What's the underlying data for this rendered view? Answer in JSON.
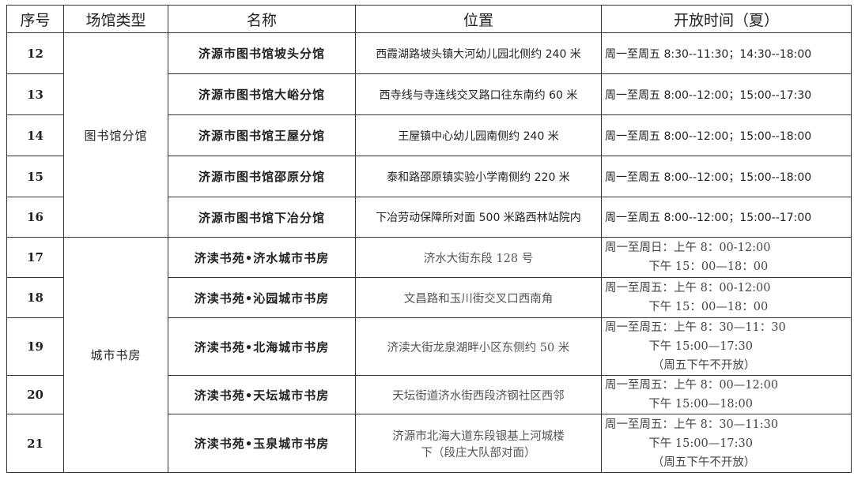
{
  "headers": [
    "序号",
    "场馆类型",
    "名称",
    "位置",
    "开放时间（夏）"
  ],
  "groups": {
    "library": "图书馆分馆",
    "bookhouse": "城市书房"
  },
  "rows": [
    {
      "no": "12",
      "name": "济源市图书馆坡头分馆",
      "loc": "西霞湖路坡头镇大河幼儿园北侧约 240 米",
      "time": "周一至周五 8:30--11:30；14:30--18:00"
    },
    {
      "no": "13",
      "name": "济源市图书馆大峪分馆",
      "loc": "西寺线与寺连线交叉路口往东南约 60 米",
      "time": "周一至周五 8:00--12:00；15:00--17:30"
    },
    {
      "no": "14",
      "name": "济源市图书馆王屋分馆",
      "loc": "王屋镇中心幼儿园南侧约 240 米",
      "time": "周一至周五 8:00--12:00；15:00--18:00"
    },
    {
      "no": "15",
      "name": "济源市图书馆邵原分馆",
      "loc": "泰和路邵原镇实验小学南侧约 220 米",
      "time": "周一至周五 8:00--12:00；15:00--18:00"
    },
    {
      "no": "16",
      "name": "济源市图书馆下冶分馆",
      "loc": "下冶劳动保障所对面 500 米路西林站院内",
      "time": "周一至周五 8:00--12:00；15:00--17:00"
    },
    {
      "no": "17",
      "name": "济渎书苑•济水城市书房",
      "loc": "济水大街东段 128 号",
      "time": "周一至周日：上午 8：00-12:00\n            下午 15：00—18：00"
    },
    {
      "no": "18",
      "name": "济渎书苑•沁园城市书房",
      "loc": "文昌路和玉川街交叉口西南角",
      "time": "周一至周五：上午 8：00-12:00\n            下午 15：00—18：00"
    },
    {
      "no": "19",
      "name": "济渎书苑•北海城市书房",
      "loc": "济渎大街龙泉湖畔小区东侧约 50 米",
      "time": "周一至周五：上午 8：30—11：30\n            下午 15:00—17:30\n             （周五下午不开放）"
    },
    {
      "no": "20",
      "name": "济渎书苑•天坛城市书房",
      "loc": "天坛街道济水街西段济钢社区西邻",
      "time": "周一至周五：上午 8：00—12:00\n            下午 15:00—18:00"
    },
    {
      "no": "21",
      "name": "济渎书苑•玉泉城市书房",
      "loc": "济源市北海大道东段银基上河城楼\n下（段庄大队部对面）",
      "time": "周一至周五：上午 8：30—11:30\n            下午 15:00—17:30\n             （周五下午不开放）"
    }
  ]
}
